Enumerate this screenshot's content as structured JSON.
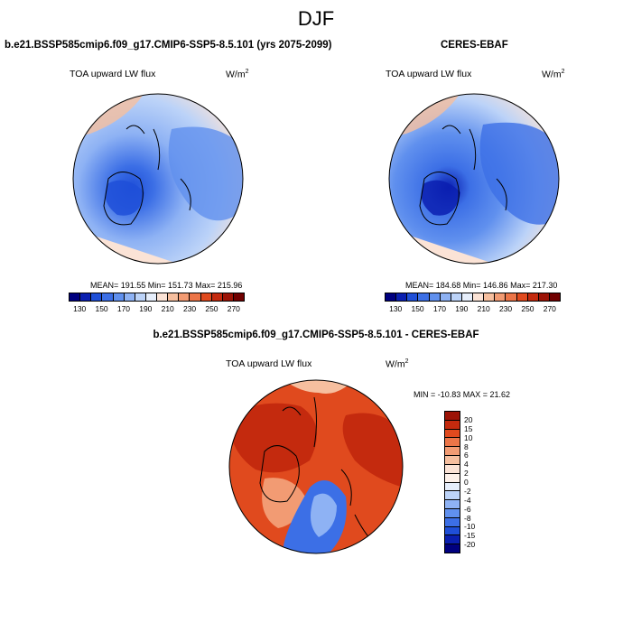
{
  "season": "DJF",
  "panels": {
    "model": {
      "title": "b.e21.BSSP585cmip6.f09_g17.CMIP6-SSP5-8.5.101 (yrs 2075-2099)",
      "field": "TOA upward LW flux",
      "units_base": "W/m",
      "units_exp": "2",
      "stats": "MEAN= 191.55   Min= 151.73   Max= 215.96",
      "fill": "#b7cff6"
    },
    "obs": {
      "title": "CERES-EBAF",
      "field": "TOA upward LW flux",
      "units_base": "W/m",
      "units_exp": "2",
      "stats": "MEAN= 184.68   Min= 146.86   Max= 217.30",
      "fill": "#a9c4f5"
    },
    "diff": {
      "title": "b.e21.BSSP585cmip6.f09_g17.CMIP6-SSP5-8.5.101 - CERES-EBAF",
      "field": "TOA upward LW flux",
      "units_base": "W/m",
      "units_exp": "2",
      "stats": "MIN = -10.83  MAX =  21.62",
      "fill": "#e04a1e"
    }
  },
  "chart_data": [
    {
      "type": "heatmap",
      "projection": "north polar stereographic",
      "title": "b.e21.BSSP585cmip6.f09_g17.CMIP6-SSP5-8.5.101 (yrs 2075-2099)",
      "variable": "TOA upward LW flux",
      "units": "W/m2",
      "mean": 191.55,
      "min": 151.73,
      "max": 215.96,
      "colorbar": {
        "levels": [
          130,
          150,
          170,
          190,
          210,
          230,
          250,
          270
        ],
        "colors": [
          "#00007f",
          "#0a1fb0",
          "#1f4fd8",
          "#3c6fe6",
          "#6090ee",
          "#8eb2f4",
          "#bcd3f8",
          "#e6eefb",
          "#fbe3d6",
          "#f6bf9f",
          "#f29b73",
          "#ec7548",
          "#e04a1e",
          "#c42a0e",
          "#9c1306",
          "#700000"
        ]
      }
    },
    {
      "type": "heatmap",
      "projection": "north polar stereographic",
      "title": "CERES-EBAF",
      "variable": "TOA upward LW flux",
      "units": "W/m2",
      "mean": 184.68,
      "min": 146.86,
      "max": 217.3,
      "colorbar": {
        "levels": [
          130,
          150,
          170,
          190,
          210,
          230,
          250,
          270
        ],
        "colors": [
          "#00007f",
          "#0a1fb0",
          "#1f4fd8",
          "#3c6fe6",
          "#6090ee",
          "#8eb2f4",
          "#bcd3f8",
          "#e6eefb",
          "#fbe3d6",
          "#f6bf9f",
          "#f29b73",
          "#ec7548",
          "#e04a1e",
          "#c42a0e",
          "#9c1306",
          "#700000"
        ]
      }
    },
    {
      "type": "heatmap",
      "projection": "north polar stereographic",
      "title": "b.e21.BSSP585cmip6.f09_g17.CMIP6-SSP5-8.5.101 - CERES-EBAF",
      "variable": "TOA upward LW flux",
      "units": "W/m2",
      "min": -10.83,
      "max": 21.62,
      "colorbar": {
        "levels": [
          "20",
          "15",
          "10",
          "8",
          "6",
          "4",
          "2",
          "0",
          "-2",
          "-4",
          "-6",
          "-8",
          "-10",
          "-15",
          "-20"
        ],
        "colors": [
          "#9c1306",
          "#c42a0e",
          "#e04a1e",
          "#ec7548",
          "#f29b73",
          "#f6bf9f",
          "#fbe3d6",
          "#fdf1ea",
          "#e6eefb",
          "#bcd3f8",
          "#8eb2f4",
          "#6090ee",
          "#3c6fe6",
          "#1f4fd8",
          "#0a1fb0",
          "#00007f"
        ]
      }
    }
  ]
}
